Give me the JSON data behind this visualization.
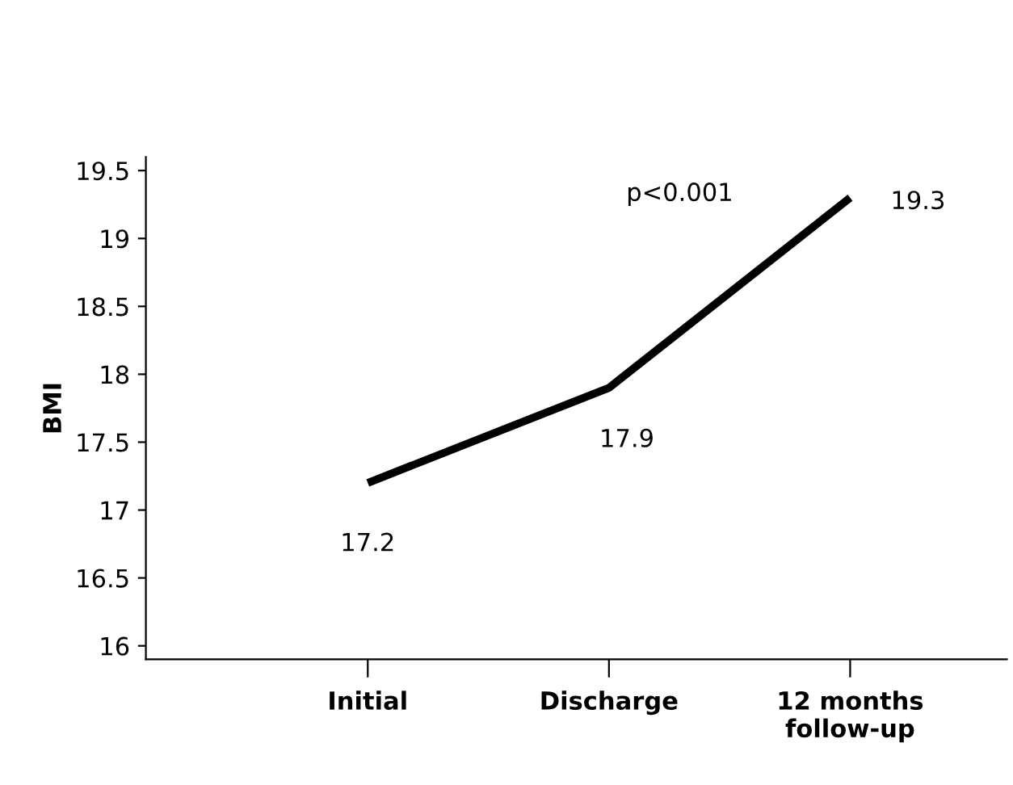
{
  "chart_data": {
    "type": "line",
    "ylabel": "BMI",
    "categories": [
      "Initial",
      "Discharge",
      "12 months\nfollow-up"
    ],
    "series": [
      {
        "color": "#000000",
        "values": [
          17.2,
          17.9,
          19.3
        ]
      }
    ],
    "data_labels": true,
    "ylim": [
      15.9,
      19.6
    ],
    "yticks": [
      16,
      16.5,
      17,
      17.5,
      18,
      18.5,
      19,
      19.5
    ],
    "annotations": [
      {
        "text": "p<0.001"
      }
    ],
    "grid": false,
    "marker": "none",
    "line_style": "solid"
  }
}
